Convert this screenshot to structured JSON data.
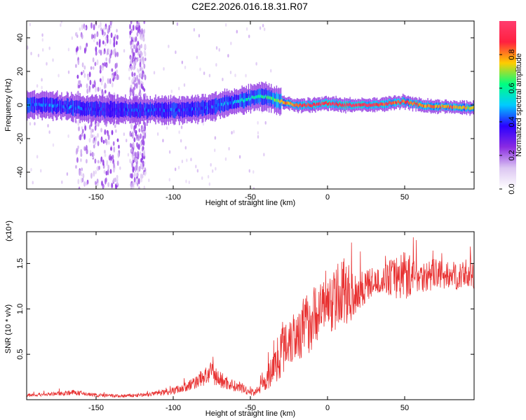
{
  "title": "C2E2.2026.016.18.31.R07",
  "colors": {
    "snr_line": "#e83232",
    "axis": "#000000"
  },
  "chart_data": [
    {
      "type": "heatmap",
      "xlabel": "Height of straight line (km)",
      "ylabel": "Frequency (Hz)",
      "xlim": [
        -195,
        95
      ],
      "ylim": [
        -50,
        50
      ],
      "x_ticks": [
        "-150",
        "-100",
        "-50",
        "0",
        "50"
      ],
      "x_tick_values": [
        -150,
        -100,
        -50,
        0,
        50
      ],
      "y_ticks": [
        "40",
        "20",
        "0",
        "-20",
        "-40"
      ],
      "y_tick_values": [
        40,
        20,
        0,
        -20,
        -40
      ],
      "colorbar": {
        "label": "Normalized spectral amplitude",
        "range": [
          0,
          1
        ],
        "ticks": [
          "0.0",
          "0.2",
          "0.4",
          "0.6",
          "0.8"
        ],
        "tick_values": [
          0.0,
          0.2,
          0.4,
          0.6,
          0.8
        ],
        "colormap": [
          "#ffffff",
          "#dcc6f2",
          "#8a2be2",
          "#2a00ff",
          "#00ccff",
          "#00ff80",
          "#ffcc00",
          "#ff2040",
          "#ff3c6e"
        ]
      },
      "ridge": {
        "x": [
          -195,
          -180,
          -160,
          -140,
          -120,
          -100,
          -80,
          -60,
          -45,
          -40,
          -30,
          -20,
          -10,
          0,
          10,
          20,
          30,
          40,
          50,
          60,
          70,
          80,
          95
        ],
        "frequency": [
          0,
          0,
          -2,
          -3,
          -3,
          -3,
          -2,
          2,
          5,
          5,
          2,
          0,
          0,
          1,
          0,
          0,
          0,
          1,
          2,
          0,
          -1,
          -1,
          -2
        ],
        "amplitude": [
          0.45,
          0.45,
          0.4,
          0.35,
          0.4,
          0.4,
          0.4,
          0.5,
          0.55,
          0.6,
          0.75,
          0.85,
          0.9,
          0.9,
          0.95,
          0.95,
          0.9,
          0.85,
          0.85,
          0.8,
          0.8,
          0.8,
          0.7
        ]
      },
      "noise_bands": [
        {
          "x_from": -163,
          "x_to": -135
        },
        {
          "x_from": -128,
          "x_to": -118
        }
      ]
    },
    {
      "type": "line",
      "xlabel": "Height of straight line (km)",
      "ylabel": "SNR (10 * v/v)",
      "y_multiplier": "(x10⁴)",
      "xlim": [
        -195,
        95
      ],
      "ylim": [
        0,
        1.85
      ],
      "x_ticks": [
        "-150",
        "-100",
        "-50",
        "0",
        "50"
      ],
      "x_tick_values": [
        -150,
        -100,
        -50,
        0,
        50
      ],
      "y_ticks": [
        "1.5",
        "1.0",
        "0.5"
      ],
      "y_tick_values": [
        1.5,
        1.0,
        0.5
      ],
      "series": [
        {
          "x": [
            -195,
            -180,
            -165,
            -150,
            -135,
            -120,
            -110,
            -100,
            -90,
            -80,
            -75,
            -70,
            -60,
            -50,
            -45,
            -40,
            -35,
            -30,
            -25,
            -20,
            -15,
            -10,
            -5,
            0,
            5,
            10,
            15,
            20,
            25,
            30,
            35,
            40,
            45,
            50,
            55,
            60,
            65,
            70,
            75,
            80,
            85,
            90,
            95
          ],
          "values": [
            0.05,
            0.06,
            0.08,
            0.05,
            0.04,
            0.05,
            0.07,
            0.1,
            0.15,
            0.25,
            0.3,
            0.22,
            0.15,
            0.08,
            0.1,
            0.2,
            0.35,
            0.55,
            0.7,
            0.72,
            0.8,
            0.9,
            1.0,
            1.05,
            1.1,
            1.2,
            1.15,
            1.2,
            1.25,
            1.3,
            1.3,
            1.35,
            1.35,
            1.4,
            1.35,
            1.38,
            1.35,
            1.4,
            1.35,
            1.38,
            1.35,
            1.38,
            1.35
          ],
          "spread": [
            0.02,
            0.02,
            0.03,
            0.02,
            0.02,
            0.02,
            0.03,
            0.04,
            0.06,
            0.1,
            0.12,
            0.1,
            0.06,
            0.04,
            0.05,
            0.1,
            0.2,
            0.3,
            0.35,
            0.3,
            0.35,
            0.35,
            0.3,
            0.3,
            0.35,
            0.4,
            0.3,
            0.25,
            0.2,
            0.15,
            0.12,
            0.2,
            0.25,
            0.3,
            0.2,
            0.18,
            0.18,
            0.16,
            0.16,
            0.15,
            0.15,
            0.15,
            0.15
          ]
        }
      ]
    }
  ]
}
